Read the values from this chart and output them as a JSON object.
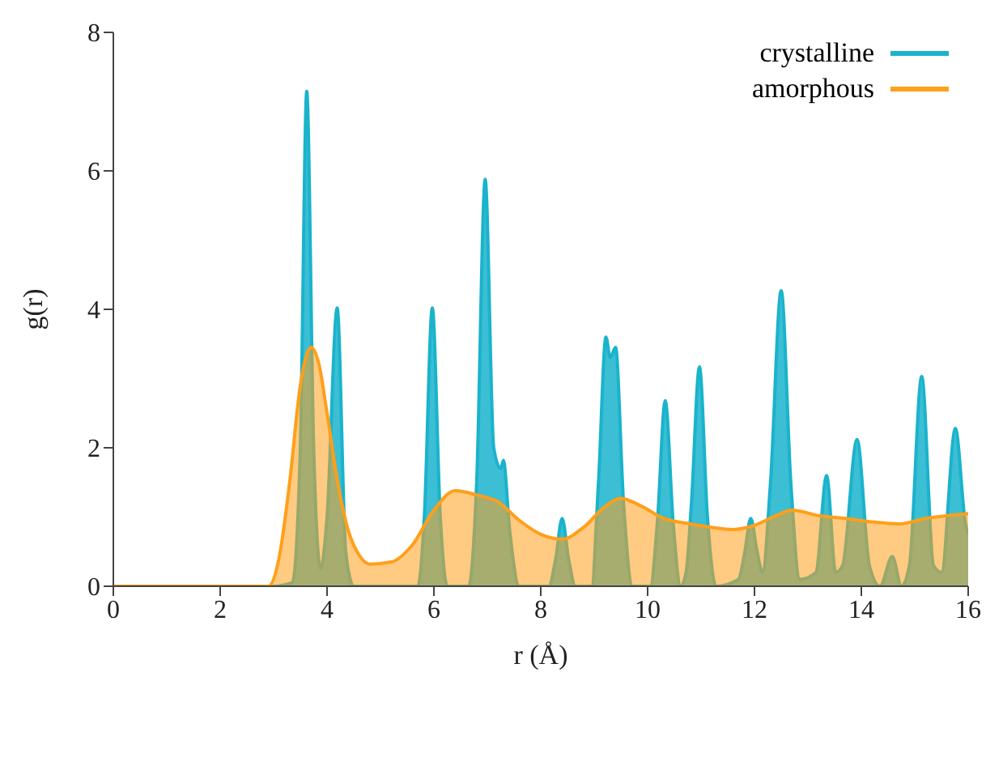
{
  "chart_data": {
    "type": "area",
    "xlabel": "r (Å)",
    "ylabel": "g(r)",
    "xlim": [
      0,
      16
    ],
    "xticks": [
      0,
      2,
      4,
      6,
      8,
      10,
      12,
      14,
      16
    ],
    "ylim": [
      0,
      8
    ],
    "yticks": [
      0,
      2,
      4,
      6,
      8
    ],
    "grid": false,
    "legend": "top right",
    "marker": "none",
    "line_style": "solid",
    "series": [
      {
        "name": "crystalline",
        "color": "#1ab3cc",
        "x": [
          0,
          3.0,
          3.35,
          3.5,
          3.62,
          3.75,
          3.88,
          4.0,
          4.19,
          4.35,
          4.5,
          5.7,
          5.82,
          5.97,
          6.12,
          6.25,
          6.65,
          6.8,
          6.96,
          7.12,
          7.25,
          7.3,
          7.42,
          7.6,
          8.15,
          8.28,
          8.4,
          8.52,
          8.65,
          8.95,
          9.08,
          9.22,
          9.3,
          9.4,
          9.55,
          9.72,
          10.05,
          10.18,
          10.33,
          10.48,
          10.62,
          10.72,
          10.82,
          10.97,
          11.12,
          11.28,
          11.7,
          11.82,
          11.93,
          12.05,
          12.15,
          12.3,
          12.5,
          12.68,
          12.85,
          13.15,
          13.35,
          13.52,
          13.65,
          13.92,
          14.15,
          14.35,
          14.58,
          14.75,
          14.9,
          15.13,
          15.35,
          15.5,
          15.76,
          15.95,
          16
        ],
        "values": [
          0,
          0,
          0.05,
          2,
          7.15,
          2,
          0.25,
          1,
          4.02,
          0.5,
          0,
          0,
          1,
          4.02,
          1,
          0,
          0,
          1.5,
          5.88,
          2,
          1.7,
          1.82,
          0.8,
          0,
          0,
          0.4,
          0.98,
          0.4,
          0,
          0,
          1.5,
          3.6,
          3.3,
          3.45,
          1.2,
          0,
          0,
          0.9,
          2.68,
          0.9,
          0,
          0.2,
          1.2,
          3.17,
          1,
          0,
          0.1,
          0.5,
          0.98,
          0.5,
          0.2,
          1.5,
          4.27,
          1.5,
          0.1,
          0.2,
          1.6,
          0.2,
          0.3,
          2.12,
          0.3,
          0,
          0.43,
          0,
          0.3,
          3.03,
          0.3,
          0.2,
          2.28,
          0.9,
          0.75
        ]
      },
      {
        "name": "amorphous",
        "color": "#ff9f1a",
        "x": [
          0,
          2.9,
          3.1,
          3.3,
          3.5,
          3.7,
          3.85,
          4.0,
          4.2,
          4.4,
          4.6,
          4.8,
          5.2,
          5.6,
          6.0,
          6.4,
          6.8,
          7.2,
          7.6,
          8.0,
          8.4,
          8.8,
          9.2,
          9.5,
          9.9,
          10.3,
          10.8,
          11.2,
          11.6,
          12.0,
          12.4,
          12.7,
          13.2,
          13.7,
          14.2,
          14.7,
          15.2,
          15.6,
          16
        ],
        "values": [
          0,
          0,
          0.4,
          1.5,
          2.9,
          3.45,
          3.2,
          2.5,
          1.5,
          0.8,
          0.45,
          0.32,
          0.35,
          0.6,
          1.1,
          1.38,
          1.32,
          1.22,
          0.95,
          0.75,
          0.68,
          0.85,
          1.15,
          1.27,
          1.15,
          0.98,
          0.9,
          0.85,
          0.82,
          0.88,
          1.02,
          1.1,
          1.02,
          0.98,
          0.93,
          0.9,
          0.98,
          1.02,
          1.05
        ]
      }
    ]
  }
}
